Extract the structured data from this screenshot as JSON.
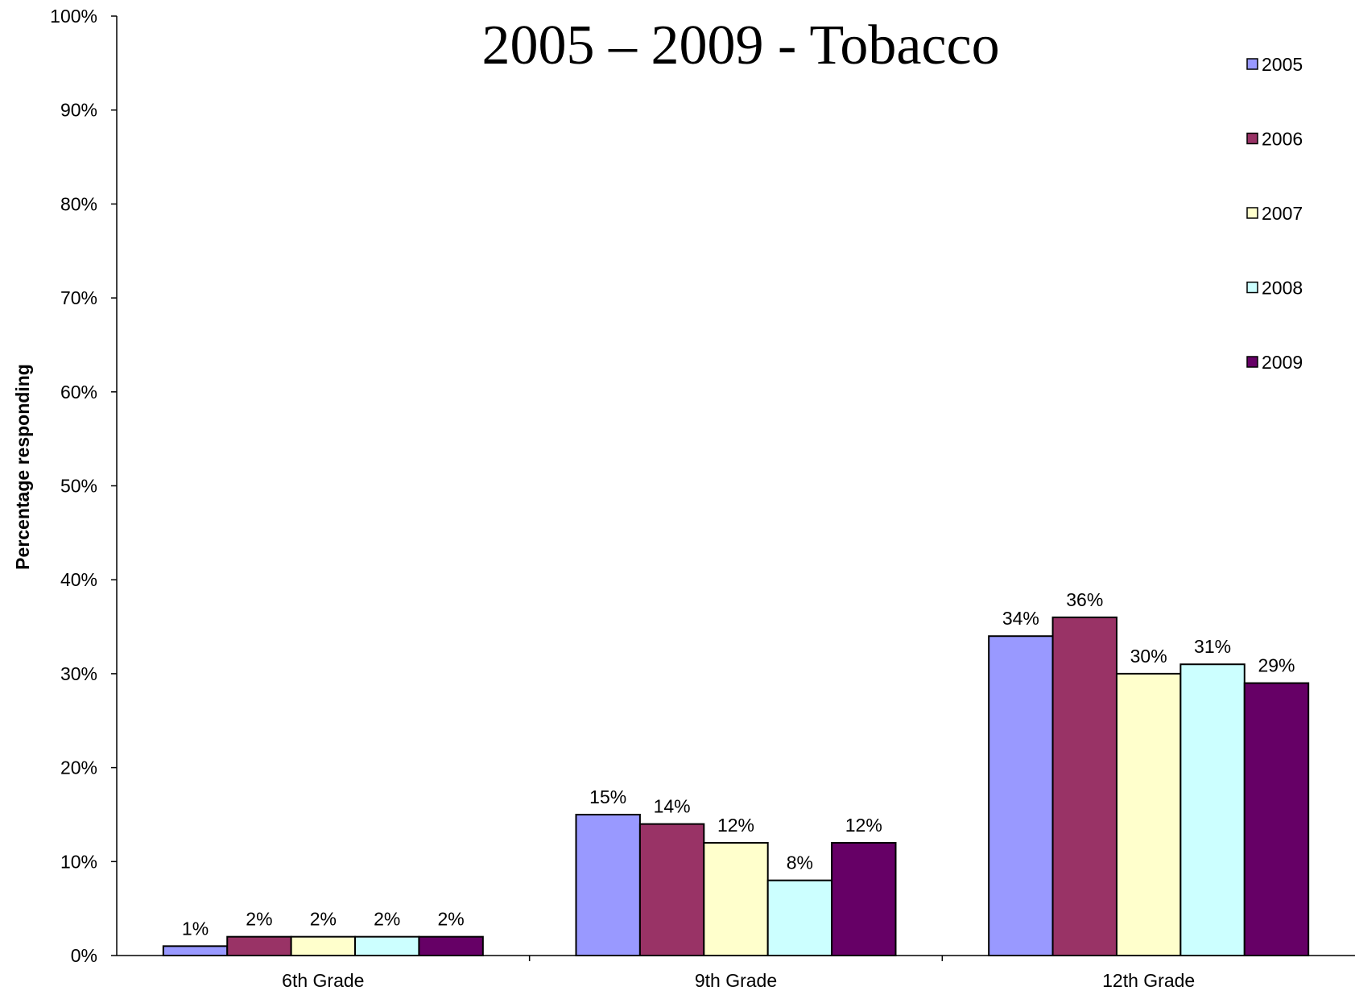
{
  "chart_data": {
    "type": "bar",
    "title": "2005 – 2009 - Tobacco",
    "ylabel": "Percentage responding",
    "xlabel": "",
    "ylim": [
      0,
      100
    ],
    "yticks": [
      "0%",
      "10%",
      "20%",
      "30%",
      "40%",
      "50%",
      "60%",
      "70%",
      "80%",
      "90%",
      "100%"
    ],
    "categories": [
      "6th Grade",
      "9th Grade",
      "12th Grade"
    ],
    "series": [
      {
        "name": "2005",
        "color": "#9999ff",
        "values": [
          1,
          15,
          34
        ],
        "labels": [
          "1%",
          "15%",
          "34%"
        ]
      },
      {
        "name": "2006",
        "color": "#993366",
        "values": [
          2,
          14,
          36
        ],
        "labels": [
          "2%",
          "14%",
          "36%"
        ]
      },
      {
        "name": "2007",
        "color": "#ffffcc",
        "values": [
          2,
          12,
          30
        ],
        "labels": [
          "2%",
          "12%",
          "30%"
        ]
      },
      {
        "name": "2008",
        "color": "#ccffff",
        "values": [
          2,
          8,
          31
        ],
        "labels": [
          "2%",
          "8%",
          "31%"
        ]
      },
      {
        "name": "2009",
        "color": "#660066",
        "values": [
          2,
          12,
          29
        ],
        "labels": [
          "2%",
          "12%",
          "29%"
        ]
      }
    ],
    "legend_position": "right",
    "grid": false
  }
}
